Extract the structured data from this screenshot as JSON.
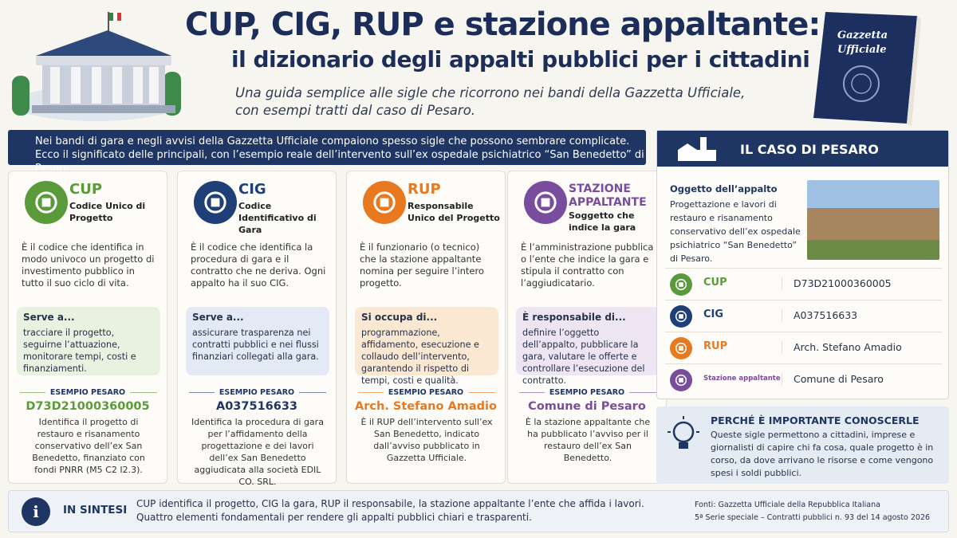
{
  "header": {
    "title_line1": "CUP, CIG, RUP e stazione appaltante:",
    "title_line2": "il dizionario degli appalti pubblici per i cittadini",
    "subtitle_line1": "Una guida semplice alle sigle che ricorrono nei bandi della Gazzetta Ufficiale,",
    "subtitle_line2": "con esempi tratti dal caso di Pesaro.",
    "book_line1": "Gazzetta",
    "book_line2": "Ufficiale"
  },
  "intro": {
    "line1": "Nei bandi di gara e negli avvisi della Gazzetta Ufficiale compaiono spesso sigle che possono sembrare complicate.",
    "line2": "Ecco il significato delle principali, con l’esempio reale dell’intervento sull’ex ospedale psichiatrico “San Benedetto” di Pesaro."
  },
  "cards": [
    {
      "acronym": "CUP",
      "name": "Codice Unico di Progetto",
      "description": "È il codice che identifica in modo univoco un progetto di investimento pubblico in tutto il suo ciclo di vita.",
      "box_title": "Serve a...",
      "box_text": "tracciare il progetto, seguirne l’attuazione, monitorare tempi, costi e finanziamenti.",
      "example_label": "ESEMPIO PESARO",
      "example_value": "D73D21000360005",
      "example_text": "Identifica il progetto di restauro e risanamento conservativo dell’ex San Benedetto, finanziato con fondi PNRR (M5 C2 I2.3)."
    },
    {
      "acronym": "CIG",
      "name": "Codice Identificativo di Gara",
      "description": "È il codice che identifica la procedura di gara e il contratto che ne deriva. Ogni appalto ha il suo CIG.",
      "box_title": "Serve a...",
      "box_text": "assicurare trasparenza nei contratti pubblici e nei flussi finanziari collegati alla gara.",
      "example_label": "ESEMPIO PESARO",
      "example_value": "A037516633",
      "example_text": "Identifica la procedura di gara per l’affidamento della progettazione e dei lavori dell’ex San Benedetto aggiudicata alla società EDIL CO. SRL."
    },
    {
      "acronym": "RUP",
      "name": "Responsabile Unico del Progetto",
      "description": "È il funzionario (o tecnico) che la stazione appaltante nomina per seguire l’intero progetto.",
      "box_title": "Si occupa di...",
      "box_text": "programmazione, affidamento, esecuzione e collaudo dell’intervento, garantendo il rispetto di tempi, costi e qualità.",
      "example_label": "ESEMPIO PESARO",
      "example_value": "Arch. Stefano Amadio",
      "example_text": "È il RUP dell’intervento sull’ex San Benedetto, indicato dall’avviso pubblicato in Gazzetta Ufficiale."
    },
    {
      "acronym": "STAZIONE APPALTANTE",
      "name": "Soggetto che indice la gara",
      "description": "È l’amministrazione pubblica o l’ente che indice la gara e stipula il contratto con l’aggiudicatario.",
      "box_title": "È responsabile di...",
      "box_text": "definire l’oggetto dell’appalto, pubblicare la gara, valutare le offerte e controllare l’esecuzione del contratto.",
      "example_label": "ESEMPIO PESARO",
      "example_value": "Comune di Pesaro",
      "example_text": "È la stazione appaltante che ha pubblicato l’avviso per il restauro dell’ex San Benedetto."
    }
  ],
  "pesaro": {
    "title": "IL CASO DI PESARO",
    "object_title": "Oggetto dell’appalto",
    "object_text": "Progettazione e lavori di restauro e risanamento conservativo dell’ex ospedale psichiatrico “San Benedetto” di Pesaro.",
    "rows": [
      {
        "label": "CUP",
        "value": "D73D21000360005"
      },
      {
        "label": "CIG",
        "value": "A037516633"
      },
      {
        "label": "RUP",
        "value": "Arch. Stefano Amadio"
      },
      {
        "label": "Stazione appaltante",
        "value": "Comune di Pesaro"
      }
    ]
  },
  "why": {
    "title": "PERCHÉ È IMPORTANTE CONOSCERLE",
    "text": "Queste sigle permettono a cittadini, imprese e giornalisti di capire chi fa cosa, quale progetto è in corso, da dove arrivano le risorse e come vengono spesi i soldi pubblici."
  },
  "summary": {
    "label": "IN SINTESI",
    "line1": "CUP identifica il progetto, CIG la gara, RUP il responsabile, la stazione appaltante l’ente che affida i lavori.",
    "line2": "Quattro elementi fondamentali per rendere gli appalti pubblici chiari e trasparenti.",
    "source1": "Fonti: Gazzetta Ufficiale della Repubblica Italiana",
    "source2": "5ª Serie speciale – Contratti pubblici n. 93 del 14 agosto 2026"
  }
}
